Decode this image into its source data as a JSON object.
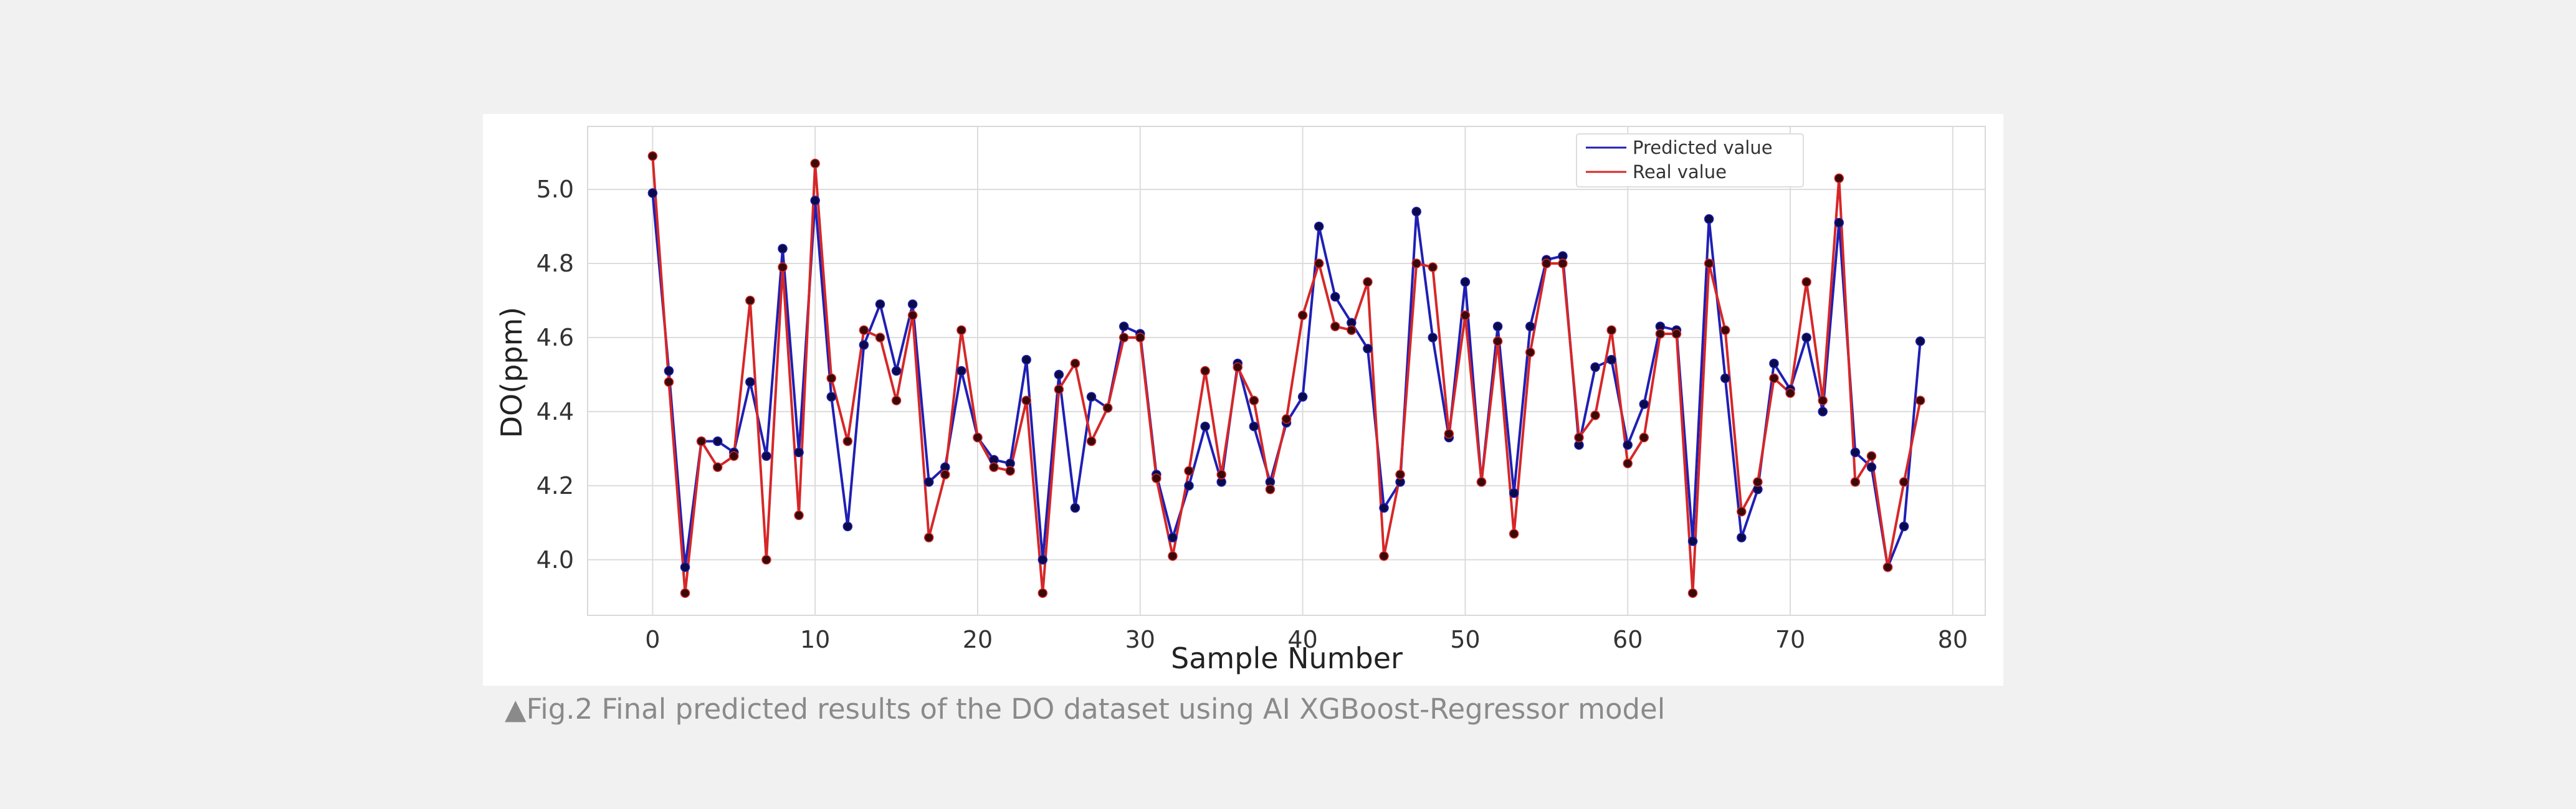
{
  "caption": "▲Fig.2 Final predicted results of the DO dataset using AI XGBoost-Regressor model",
  "chart_data": {
    "type": "line",
    "xlabel": "Sample Number",
    "ylabel": "DO(ppm)",
    "xlim": [
      -4,
      82
    ],
    "ylim": [
      3.85,
      5.17
    ],
    "xticks": [
      0,
      10,
      20,
      30,
      40,
      50,
      60,
      70,
      80
    ],
    "yticks": [
      4.0,
      4.2,
      4.4,
      4.6,
      4.8,
      5.0
    ],
    "ytick_labels": [
      "4.0",
      "4.2",
      "4.4",
      "4.6",
      "4.8",
      "5.0"
    ],
    "grid": true,
    "legend": "top-right",
    "x": [
      0,
      1,
      2,
      3,
      4,
      5,
      6,
      7,
      8,
      9,
      10,
      11,
      12,
      13,
      14,
      15,
      16,
      17,
      18,
      19,
      20,
      21,
      22,
      23,
      24,
      25,
      26,
      27,
      28,
      29,
      30,
      31,
      32,
      33,
      34,
      35,
      36,
      37,
      38,
      39,
      40,
      41,
      42,
      43,
      44,
      45,
      46,
      47,
      48,
      49,
      50,
      51,
      52,
      53,
      54,
      55,
      56,
      57,
      58,
      59,
      60,
      61,
      62,
      63,
      64,
      65,
      66,
      67,
      68,
      69,
      70,
      71,
      72,
      73,
      74,
      75,
      76,
      77,
      78
    ],
    "series": [
      {
        "name": "Predicted value",
        "color": "#1f1fb4",
        "values": [
          4.99,
          4.51,
          3.98,
          4.32,
          4.32,
          4.29,
          4.48,
          4.28,
          4.84,
          4.29,
          4.97,
          4.44,
          4.09,
          4.58,
          4.69,
          4.51,
          4.69,
          4.21,
          4.25,
          4.51,
          4.33,
          4.27,
          4.26,
          4.54,
          4.0,
          4.5,
          4.14,
          4.44,
          4.41,
          4.63,
          4.61,
          4.23,
          4.06,
          4.2,
          4.36,
          4.21,
          4.53,
          4.36,
          4.21,
          4.37,
          4.44,
          4.9,
          4.71,
          4.64,
          4.57,
          4.14,
          4.21,
          4.94,
          4.6,
          4.33,
          4.75,
          4.21,
          4.63,
          4.18,
          4.63,
          4.81,
          4.82,
          4.31,
          4.52,
          4.54,
          4.31,
          4.42,
          4.63,
          4.62,
          4.05,
          4.92,
          4.49,
          4.06,
          4.19,
          4.53,
          4.46,
          4.6,
          4.4,
          4.91,
          4.29,
          4.25,
          3.98,
          4.09,
          4.59
        ]
      },
      {
        "name": "Real value",
        "color": "#d62728",
        "values": [
          5.09,
          4.48,
          3.91,
          4.32,
          4.25,
          4.28,
          4.7,
          4.0,
          4.79,
          4.12,
          5.07,
          4.49,
          4.32,
          4.62,
          4.6,
          4.43,
          4.66,
          4.06,
          4.23,
          4.62,
          4.33,
          4.25,
          4.24,
          4.43,
          3.91,
          4.46,
          4.53,
          4.32,
          4.41,
          4.6,
          4.6,
          4.22,
          4.01,
          4.24,
          4.51,
          4.23,
          4.52,
          4.43,
          4.19,
          4.38,
          4.66,
          4.8,
          4.63,
          4.62,
          4.75,
          4.01,
          4.23,
          4.8,
          4.79,
          4.34,
          4.66,
          4.21,
          4.59,
          4.07,
          4.56,
          4.8,
          4.8,
          4.33,
          4.39,
          4.62,
          4.26,
          4.33,
          4.61,
          4.61,
          3.91,
          4.8,
          4.62,
          4.13,
          4.21,
          4.49,
          4.45,
          4.75,
          4.43,
          5.03,
          4.21,
          4.28,
          3.98,
          4.21,
          4.43
        ]
      }
    ]
  }
}
